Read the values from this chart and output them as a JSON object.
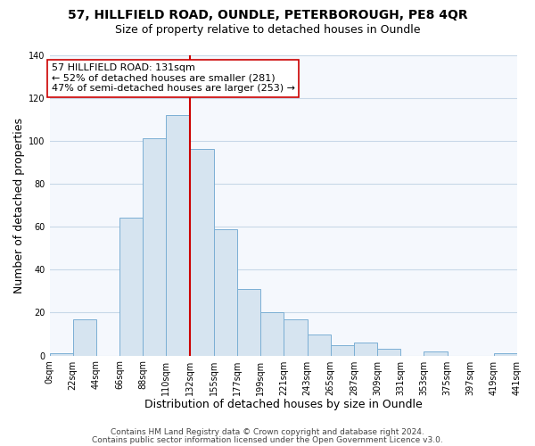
{
  "title_line1": "57, HILLFIELD ROAD, OUNDLE, PETERBOROUGH, PE8 4QR",
  "title_line2": "Size of property relative to detached houses in Oundle",
  "xlabel": "Distribution of detached houses by size in Oundle",
  "ylabel": "Number of detached properties",
  "bar_color": "#d6e4f0",
  "bar_edge_color": "#7bafd4",
  "vline_x": 132,
  "vline_color": "#cc0000",
  "annotation_title": "57 HILLFIELD ROAD: 131sqm",
  "annotation_line2": "← 52% of detached houses are smaller (281)",
  "annotation_line3": "47% of semi-detached houses are larger (253) →",
  "bins_left": [
    0,
    22,
    44,
    66,
    88,
    110,
    132,
    155,
    177,
    199,
    221,
    243,
    265,
    287,
    309,
    331,
    353,
    375,
    397,
    419
  ],
  "bin_widths": [
    22,
    22,
    22,
    22,
    22,
    22,
    23,
    22,
    22,
    22,
    22,
    22,
    22,
    22,
    22,
    22,
    22,
    22,
    22,
    22
  ],
  "bar_heights": [
    1,
    17,
    0,
    64,
    101,
    112,
    96,
    59,
    31,
    20,
    17,
    10,
    5,
    6,
    3,
    0,
    2,
    0,
    0,
    1
  ],
  "xtick_labels": [
    "0sqm",
    "22sqm",
    "44sqm",
    "66sqm",
    "88sqm",
    "110sqm",
    "132sqm",
    "155sqm",
    "177sqm",
    "199sqm",
    "221sqm",
    "243sqm",
    "265sqm",
    "287sqm",
    "309sqm",
    "331sqm",
    "353sqm",
    "375sqm",
    "397sqm",
    "419sqm",
    "441sqm"
  ],
  "xtick_positions": [
    0,
    22,
    44,
    66,
    88,
    110,
    132,
    155,
    177,
    199,
    221,
    243,
    265,
    287,
    309,
    331,
    353,
    375,
    397,
    419,
    441
  ],
  "xlim": [
    0,
    441
  ],
  "ylim": [
    0,
    140
  ],
  "yticks": [
    0,
    20,
    40,
    60,
    80,
    100,
    120,
    140
  ],
  "footer1": "Contains HM Land Registry data © Crown copyright and database right 2024.",
  "footer2": "Contains public sector information licensed under the Open Government Licence v3.0.",
  "background_color": "#ffffff",
  "plot_bg_color": "#f5f8fd",
  "box_facecolor": "#ffffff",
  "box_edgecolor": "#cc0000",
  "title_fontsize": 10,
  "subtitle_fontsize": 9,
  "axis_label_fontsize": 9,
  "tick_fontsize": 7,
  "annotation_fontsize": 8,
  "footer_fontsize": 6.5,
  "grid_color": "#c8d8e8"
}
